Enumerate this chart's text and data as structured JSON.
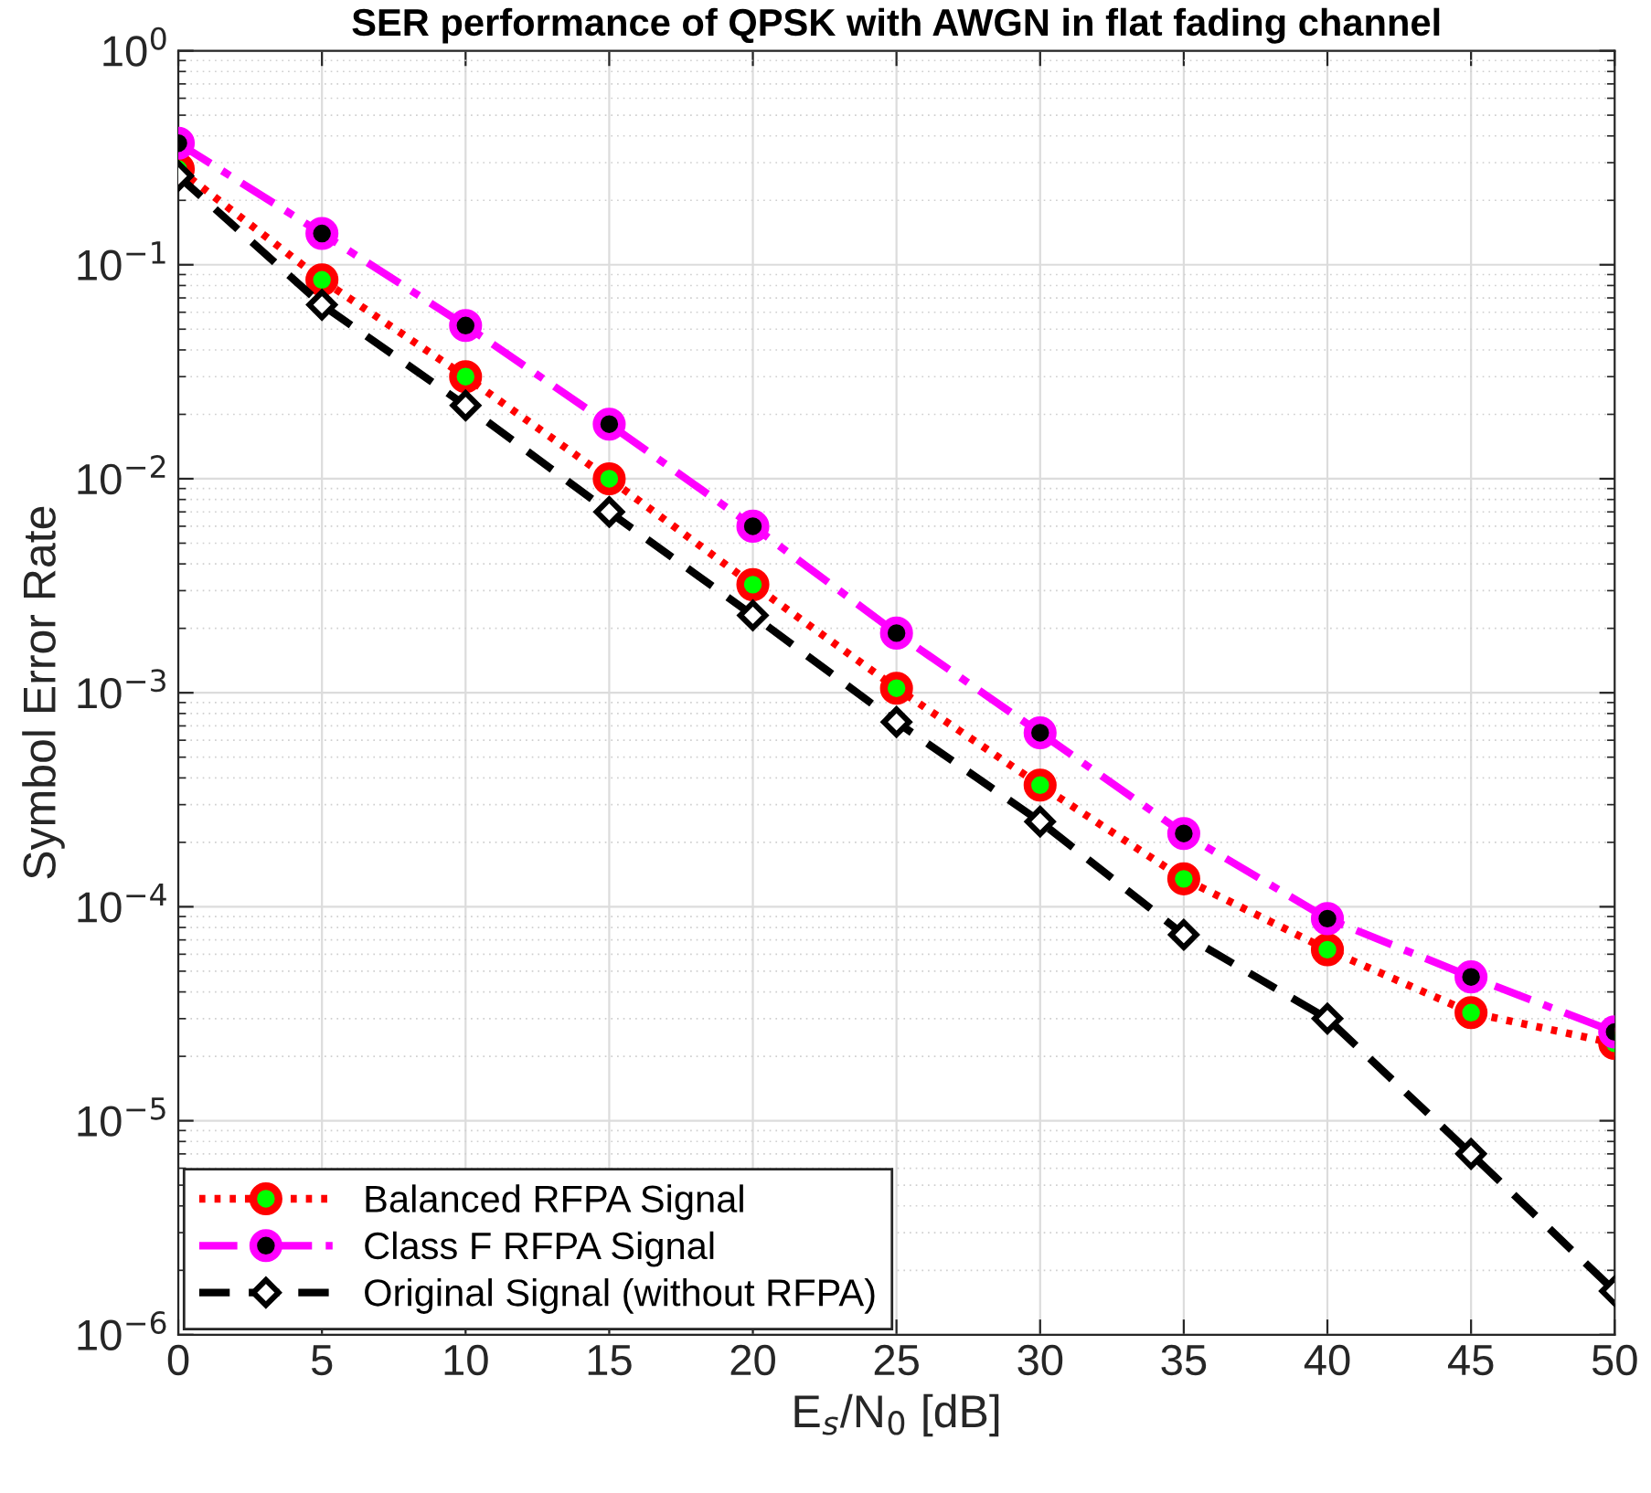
{
  "chart_data": {
    "type": "line",
    "title": "SER performance of QPSK with AWGN in flat fading channel",
    "xlabel": "E$_{s}$/N$_{0}$ [dB]",
    "ylabel": "Symbol Error Rate",
    "x": [
      0,
      5,
      10,
      15,
      20,
      25,
      30,
      35,
      40,
      45,
      50
    ],
    "series": [
      {
        "name": "Balanced RFPA Signal",
        "color": "#ff0000",
        "marker": "circle",
        "line_style": "dotted",
        "values": [
          0.28,
          0.085,
          0.03,
          0.01,
          0.0032,
          0.00105,
          0.00037,
          0.000135,
          6.3e-05,
          3.2e-05,
          2.3e-05
        ]
      },
      {
        "name": "Class F RFPA Signal",
        "color": "#ff00ff",
        "marker": "circle",
        "line_style": "dashdot",
        "values": [
          0.37,
          0.14,
          0.052,
          0.018,
          0.006,
          0.0019,
          0.00065,
          0.00022,
          8.8e-05,
          4.7e-05,
          2.6e-05
        ]
      },
      {
        "name": "Original Signal (without RFPA)",
        "color": "#000000",
        "marker": "diamond",
        "line_style": "dashed",
        "values": [
          0.26,
          0.065,
          0.022,
          0.007,
          0.0023,
          0.00073,
          0.00025,
          7.4e-05,
          3e-05,
          7e-06,
          1.6e-06
        ]
      }
    ],
    "log": "y",
    "grid": true,
    "legend": "bottom left",
    "xlim": [
      0,
      50
    ],
    "xticks": [
      0,
      5,
      10,
      15,
      20,
      25,
      30,
      35,
      40,
      45,
      50
    ],
    "ylim": [
      1e-06,
      1
    ],
    "yticks": [
      {
        "value": 1e-06,
        "label": "10$^{−6}$"
      },
      {
        "value": 1e-05,
        "label": "10$^{−5}$"
      },
      {
        "value": 0.0001,
        "label": "10$^{−4}$"
      },
      {
        "value": 0.001,
        "label": "10$^{−3}$"
      },
      {
        "value": 0.01,
        "label": "10$^{−2}$"
      },
      {
        "value": 0.1,
        "label": "10$^{−1}$"
      },
      {
        "value": 1,
        "label": "10$^{0}$"
      }
    ]
  }
}
